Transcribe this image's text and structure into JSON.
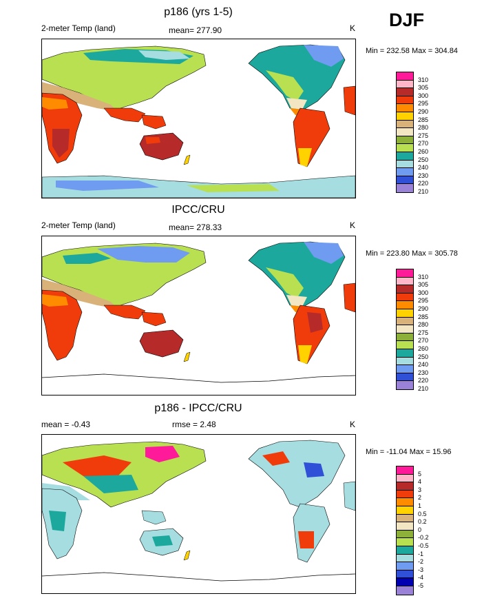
{
  "season": "DJF",
  "panels": [
    {
      "title": "p186 (yrs 1-5)",
      "left_label": "2-meter Temp (land)",
      "center_label": "mean= 277.90",
      "right_label": "K",
      "minmax": "Min = 232.58 Max = 304.84",
      "scheme": "abs",
      "levels": [
        "310",
        "305",
        "300",
        "295",
        "290",
        "285",
        "280",
        "275",
        "270",
        "260",
        "250",
        "240",
        "230",
        "220",
        "210"
      ]
    },
    {
      "title": "IPCC/CRU",
      "left_label": "2-meter Temp (land)",
      "center_label": "mean= 278.33",
      "right_label": "K",
      "minmax": "Min = 223.80 Max = 305.78",
      "scheme": "abs",
      "levels": [
        "310",
        "305",
        "300",
        "295",
        "290",
        "285",
        "280",
        "275",
        "270",
        "260",
        "250",
        "240",
        "230",
        "220",
        "210"
      ]
    },
    {
      "title": "p186 - IPCC/CRU",
      "left_label": "mean =  -0.43",
      "center_label": "rmse =   2.48",
      "right_label": "K",
      "minmax": "Min = -11.04 Max =  15.96",
      "scheme": "diff",
      "levels": [
        "5",
        "4",
        "3",
        "2",
        "1",
        "0.5",
        "0.2",
        "0",
        "-0.2",
        "-0.5",
        "-1",
        "-2",
        "-3",
        "-4",
        "-5"
      ]
    }
  ],
  "colors": {
    "abs": [
      "#ff1a9a",
      "#ffb6c8",
      "#b72a2a",
      "#f03c0a",
      "#ff8c00",
      "#ffd200",
      "#d9b27a",
      "#f3e6c2",
      "#8db03a",
      "#b8e050",
      "#1ca89c",
      "#a6dde0",
      "#6f9cf0",
      "#3050d8",
      "#9a82d8"
    ],
    "diff": [
      "#ff1a9a",
      "#ffb6c8",
      "#b72a2a",
      "#f03c0a",
      "#ff8c00",
      "#ffd200",
      "#d9b27a",
      "#f3e6c2",
      "#8db03a",
      "#b8e050",
      "#1ca89c",
      "#a6dde0",
      "#6f9cf0",
      "#3050d8",
      "#0000b0",
      "#9a82d8"
    ]
  }
}
